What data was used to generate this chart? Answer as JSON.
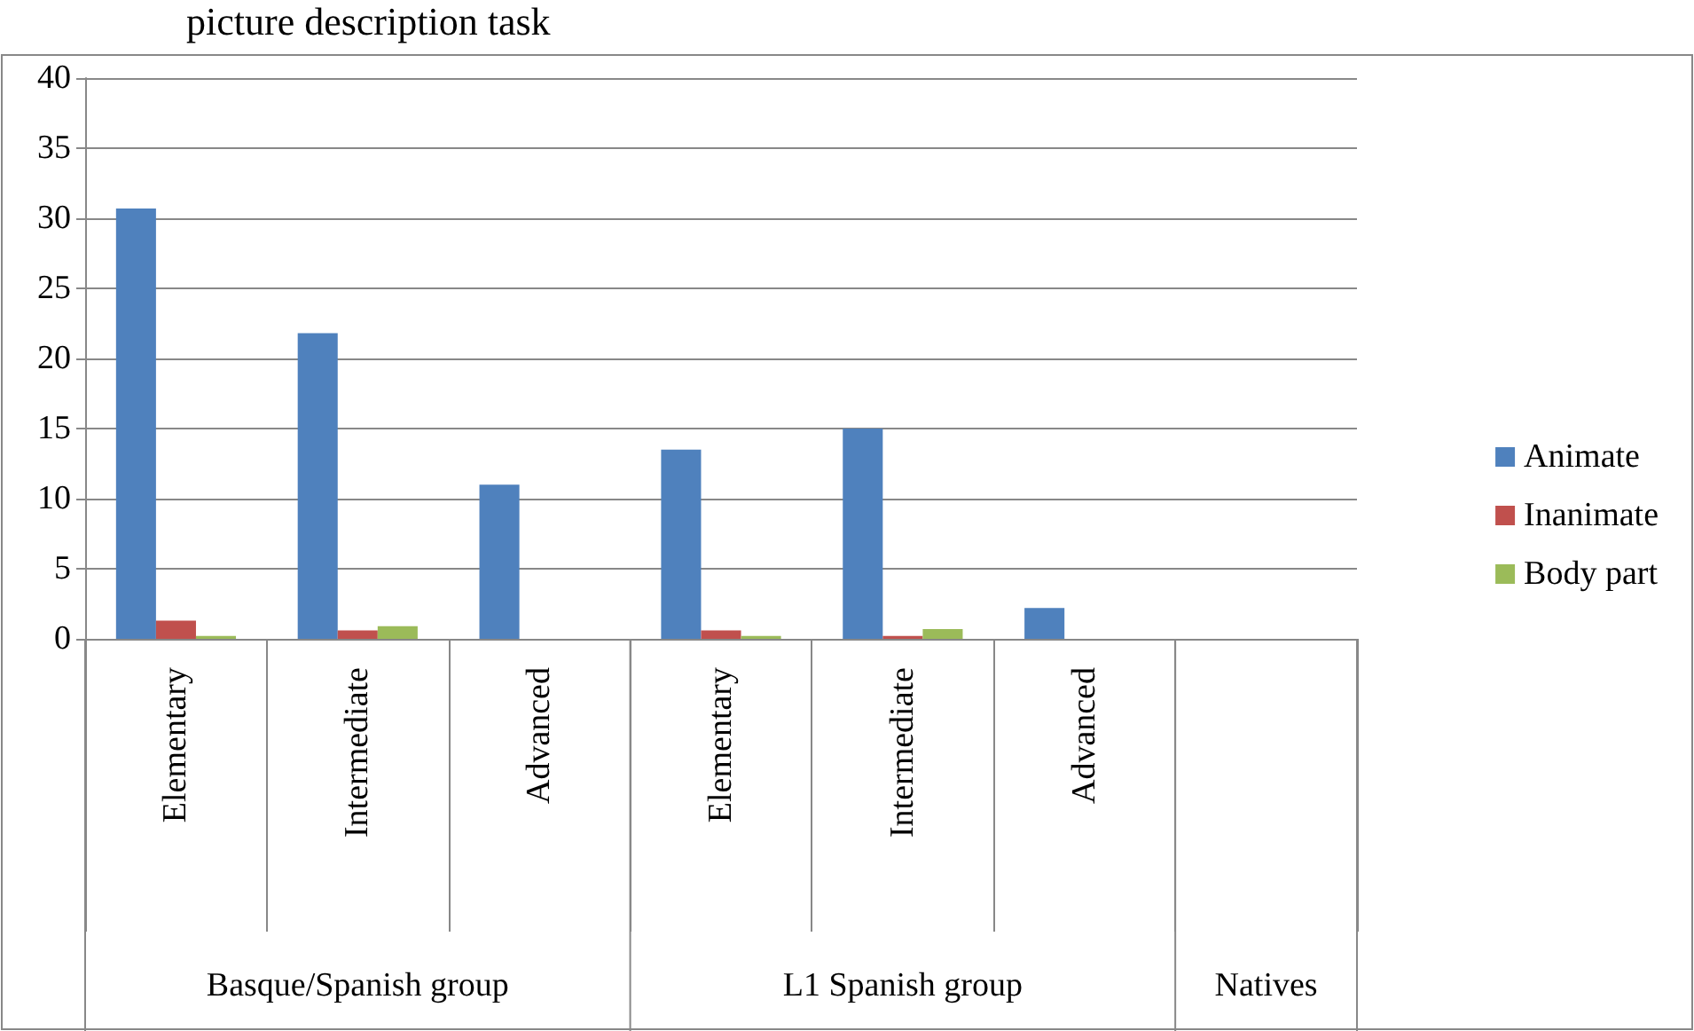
{
  "chart_data": {
    "type": "bar",
    "title": "picture description task",
    "categories": [
      "Elementary",
      "Intermediate",
      "Advanced",
      "Elementary",
      "Intermediate",
      "Advanced",
      null
    ],
    "annotations": [
      "Basque/Spanish group",
      "L1 Spanish group",
      "Natives"
    ],
    "series": [
      {
        "name": "Animate",
        "color": "#4f81bd",
        "values": [
          30.7,
          21.8,
          11.0,
          13.5,
          15.0,
          2.2,
          0
        ]
      },
      {
        "name": "Inanimate",
        "color": "#c0504d",
        "values": [
          1.3,
          0.6,
          0,
          0.6,
          0.2,
          0,
          0
        ]
      },
      {
        "name": "Body part",
        "color": "#9bbb59",
        "values": [
          0.2,
          0.9,
          0,
          0.2,
          0.7,
          0,
          0
        ]
      }
    ],
    "ylim": [
      0,
      40
    ],
    "yticks": [
      0,
      5,
      10,
      15,
      20,
      25,
      30,
      35,
      40
    ],
    "grid": "y",
    "legend": "right"
  }
}
